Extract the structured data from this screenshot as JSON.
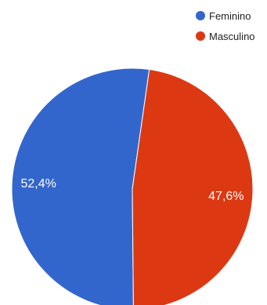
{
  "chart_data": {
    "type": "pie",
    "title": "",
    "legend_position": "top-right",
    "slices": [
      {
        "name": "Feminino",
        "value": 52.4,
        "label": "52,4%",
        "color": "#3366cc"
      },
      {
        "name": "Masculino",
        "value": 47.6,
        "label": "47,6%",
        "color": "#dc3912"
      }
    ]
  }
}
